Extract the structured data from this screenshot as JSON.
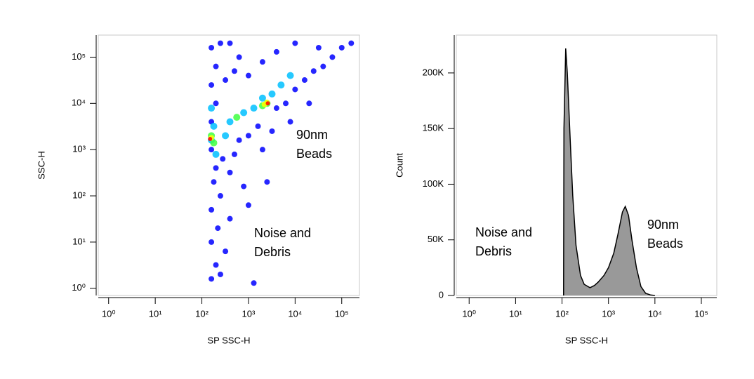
{
  "chart_data": [
    {
      "type": "scatter",
      "xlabel": "SP SSC-H",
      "ylabel": "SSC-H",
      "log_x": true,
      "log_y": true,
      "xlim": [
        0.6,
        240000
      ],
      "ylim": [
        0.7,
        300000
      ],
      "xticks": [
        {
          "value": 1,
          "label": "10⁰"
        },
        {
          "value": 10,
          "label": "10¹"
        },
        {
          "value": 100,
          "label": "10²"
        },
        {
          "value": 1000,
          "label": "10³"
        },
        {
          "value": 10000,
          "label": "10⁴"
        },
        {
          "value": 100000,
          "label": "10⁵"
        }
      ],
      "yticks": [
        {
          "value": 1,
          "label": "10⁰"
        },
        {
          "value": 10,
          "label": "10¹"
        },
        {
          "value": 100,
          "label": "10²"
        },
        {
          "value": 1000,
          "label": "10³"
        },
        {
          "value": 10000,
          "label": "10⁴"
        },
        {
          "value": 100000,
          "label": "10⁵"
        }
      ],
      "series": [
        {
          "color": "#0000ff",
          "x": [
            160,
            200,
            160,
            220,
            160,
            250,
            180,
            200,
            160,
            280,
            160,
            200,
            160,
            200,
            160,
            250,
            320,
            400,
            500,
            630,
            1000,
            1600,
            790,
            2000,
            3200,
            4000,
            6300,
            10000,
            16000,
            25000,
            40000,
            63000,
            100000,
            160000,
            1000,
            2000,
            4000,
            10000,
            500,
            630,
            400,
            320,
            250,
            1000,
            2500,
            7900,
            1300,
            20000,
            400,
            32000
          ],
          "values": [
            1.6,
            3.2,
            10,
            20,
            50,
            100,
            200,
            400,
            1000,
            630,
            4000,
            10000,
            25000,
            63000,
            160000,
            200000,
            32000,
            320,
            790,
            1600,
            2000,
            3200,
            160,
            1000,
            2500,
            7900,
            10000,
            20000,
            32000,
            50000,
            63000,
            100000,
            160000,
            200000,
            40000,
            79000,
            130000,
            200000,
            50000,
            100000,
            32,
            6.3,
            2,
            63,
            200,
            4000,
            1.3,
            10000,
            200000,
            160000
          ]
        },
        {
          "color": "#00bfff",
          "x": [
            160,
            180,
            200,
            400,
            790,
            1300,
            3200,
            5000,
            7900,
            160,
            320,
            2000
          ],
          "values": [
            1600,
            3200,
            790,
            4000,
            6300,
            7900,
            16000,
            25000,
            40000,
            7900,
            2000,
            13000
          ]
        },
        {
          "color": "#40ff40",
          "x": [
            160,
            180,
            2000,
            2500,
            560
          ],
          "values": [
            2000,
            1400,
            8900,
            10000,
            5000
          ]
        },
        {
          "color": "#ffff00",
          "x": [
            160,
            2500,
            2200
          ],
          "values": [
            1800,
            10500,
            9500
          ]
        },
        {
          "color": "#ff0000",
          "x": [
            150,
            2600
          ],
          "values": [
            1700,
            10000
          ]
        }
      ],
      "annotations": [
        [
          "90nm",
          "Beads"
        ],
        [
          "Noise and",
          "Debris"
        ]
      ]
    },
    {
      "type": "area",
      "xlabel": "SP SSC-H",
      "ylabel": "Count",
      "log_x": true,
      "log_y": false,
      "xlim": [
        0.53,
        215000
      ],
      "ylim": [
        0,
        234000
      ],
      "xticks": [
        {
          "value": 1,
          "label": "10⁰"
        },
        {
          "value": 10,
          "label": "10¹"
        },
        {
          "value": 100,
          "label": "10²"
        },
        {
          "value": 1000,
          "label": "10³"
        },
        {
          "value": 10000,
          "label": "10⁴"
        },
        {
          "value": 100000,
          "label": "10⁵"
        }
      ],
      "yticks": [
        0,
        {
          "value": 50000,
          "label": "50K"
        },
        {
          "value": 100000,
          "label": "100K"
        },
        {
          "value": 150000,
          "label": "150K"
        },
        {
          "value": 200000,
          "label": "200K"
        }
      ],
      "color": "#999999",
      "x": [
        108,
        110,
        120,
        130,
        150,
        170,
        200,
        250,
        300,
        400,
        500,
        600,
        800,
        1000,
        1300,
        1600,
        2000,
        2300,
        2700,
        3200,
        4000,
        5000,
        6300,
        8000,
        10000
      ],
      "values": [
        0,
        150000,
        222000,
        200000,
        140000,
        90000,
        45000,
        18000,
        10000,
        7000,
        9000,
        12000,
        18000,
        25000,
        38000,
        55000,
        75000,
        80000,
        72000,
        50000,
        25000,
        8000,
        2000,
        500,
        0
      ],
      "annotations": [
        [
          "Noise and",
          "Debris"
        ],
        [
          "90nm",
          "Beads"
        ]
      ]
    }
  ]
}
